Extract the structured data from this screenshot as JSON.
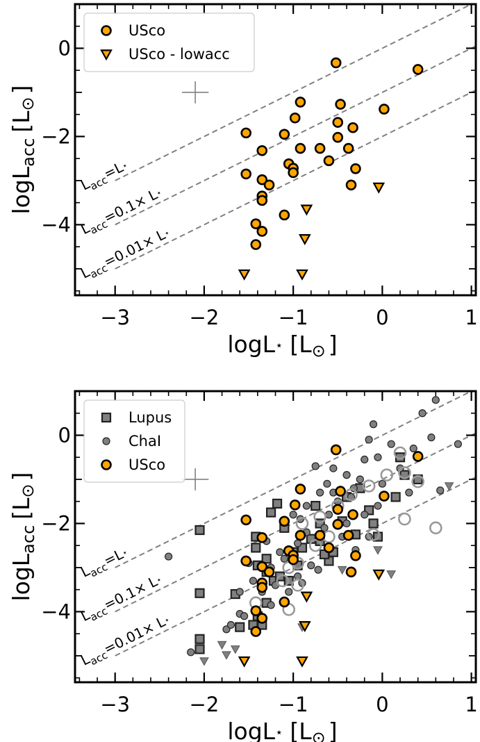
{
  "chart_data": [
    {
      "type": "scatter",
      "panel": "top",
      "xlabel_main": "logL",
      "xlabel_sub": "⋆",
      "xlabel_unit": "[L",
      "xlabel_sun": "⊙",
      "xlabel_close": "]",
      "ylabel_main": "logL",
      "ylabel_sub": "acc",
      "ylabel_unit": "[L",
      "ylabel_sun": "⊙",
      "ylabel_close": "]",
      "xlim": [
        -3.45,
        1.05
      ],
      "ylim": [
        -5.6,
        1.0
      ],
      "xticks": [
        -3,
        -2,
        -1,
        0,
        1
      ],
      "xtick_labels": [
        "−3",
        "−2",
        "−1",
        "0",
        "1"
      ],
      "yticks": [
        -4,
        -2,
        0
      ],
      "ytick_labels": [
        "−4",
        "−2",
        "0"
      ],
      "legend_position": "upper-left",
      "legend": [
        {
          "label": "USco",
          "marker": "circle",
          "color": "#ffa500"
        },
        {
          "label": "USco - lowacc",
          "marker": "triangle-down",
          "color": "#ffa500"
        }
      ],
      "reference_lines": [
        {
          "label": "L_acc=L⋆",
          "label_main": "L",
          "label_sub": "acc",
          "label_rest": "=L",
          "label_star": "⋆",
          "offset": 0
        },
        {
          "label": "L_acc=0.1× L⋆",
          "label_main": "L",
          "label_sub": "acc",
          "label_rest": "=0.1× L",
          "label_star": "⋆",
          "offset": -1
        },
        {
          "label": "L_acc=0.01× L⋆",
          "label_main": "L",
          "label_sub": "acc",
          "label_rest": "=0.01× L",
          "label_star": "⋆",
          "offset": -2
        }
      ],
      "error_cross": {
        "x": -2.1,
        "y": -1.0,
        "dx": 0.15,
        "dy": 0.25
      },
      "series": [
        {
          "name": "USco",
          "marker": "circle",
          "color": "#ffa500",
          "points": [
            [
              -0.52,
              -0.33
            ],
            [
              0.4,
              -0.48
            ],
            [
              -0.92,
              -1.22
            ],
            [
              -0.47,
              -1.27
            ],
            [
              0.02,
              -1.38
            ],
            [
              -0.98,
              -1.58
            ],
            [
              -0.5,
              -1.68
            ],
            [
              -0.33,
              -1.8
            ],
            [
              -1.53,
              -1.92
            ],
            [
              -1.1,
              -1.95
            ],
            [
              -0.5,
              -2.02
            ],
            [
              -0.92,
              -2.27
            ],
            [
              -0.7,
              -2.27
            ],
            [
              -0.38,
              -2.27
            ],
            [
              -1.35,
              -2.32
            ],
            [
              -0.6,
              -2.55
            ],
            [
              -1.05,
              -2.62
            ],
            [
              -1.0,
              -2.72
            ],
            [
              -0.3,
              -2.73
            ],
            [
              -1.0,
              -2.82
            ],
            [
              -1.53,
              -2.85
            ],
            [
              -1.35,
              -2.98
            ],
            [
              -1.27,
              -3.1
            ],
            [
              -0.35,
              -3.1
            ],
            [
              -1.35,
              -3.35
            ],
            [
              -1.35,
              -3.45
            ],
            [
              -1.1,
              -3.78
            ],
            [
              -1.42,
              -3.98
            ],
            [
              -1.35,
              -4.15
            ],
            [
              -1.42,
              -4.45
            ]
          ]
        },
        {
          "name": "USco - lowacc",
          "marker": "triangle-down",
          "color": "#ffa500",
          "points": [
            [
              -0.04,
              -3.15
            ],
            [
              -0.85,
              -3.65
            ],
            [
              -0.87,
              -4.32
            ],
            [
              -1.55,
              -5.12
            ],
            [
              -0.9,
              -5.12
            ]
          ]
        }
      ]
    },
    {
      "type": "scatter",
      "panel": "bottom",
      "xlabel_main": "logL",
      "xlabel_sub": "⋆",
      "xlabel_unit": "[L",
      "xlabel_sun": "⊙",
      "xlabel_close": "]",
      "ylabel_main": "logL",
      "ylabel_sub": "acc",
      "ylabel_unit": "[L",
      "ylabel_sun": "⊙",
      "ylabel_close": "]",
      "xlim": [
        -3.45,
        1.05
      ],
      "ylim": [
        -5.6,
        1.0
      ],
      "xticks": [
        -3,
        -2,
        -1,
        0,
        1
      ],
      "xtick_labels": [
        "−3",
        "−2",
        "−1",
        "0",
        "1"
      ],
      "yticks": [
        -4,
        -2,
        0
      ],
      "ytick_labels": [
        "−4",
        "−2",
        "0"
      ],
      "legend_position": "upper-left",
      "legend": [
        {
          "label": "Lupus",
          "marker": "square",
          "color": "#808080"
        },
        {
          "label": "ChaI",
          "marker": "circle",
          "color": "#808080"
        },
        {
          "label": "USco",
          "marker": "circle",
          "color": "#ffa500"
        }
      ],
      "reference_lines": [
        {
          "label": "L_acc=L⋆",
          "label_main": "L",
          "label_sub": "acc",
          "label_rest": "=L",
          "label_star": "⋆",
          "offset": 0
        },
        {
          "label": "L_acc=0.1× L⋆",
          "label_main": "L",
          "label_sub": "acc",
          "label_rest": "=0.1× L",
          "label_star": "⋆",
          "offset": -1
        },
        {
          "label": "L_acc=0.01× L⋆",
          "label_main": "L",
          "label_sub": "acc",
          "label_rest": "=0.01× L",
          "label_star": "⋆",
          "offset": -2
        }
      ],
      "error_cross": {
        "x": -2.1,
        "y": -1.0,
        "dx": 0.15,
        "dy": 0.25
      },
      "series": [
        {
          "name": "Lupus",
          "marker": "square",
          "color": "#808080",
          "points": [
            [
              -2.05,
              -2.15
            ],
            [
              -2.05,
              -3.58
            ],
            [
              -2.05,
              -4.62
            ],
            [
              -2.05,
              -4.85
            ],
            [
              -1.42,
              -2.3
            ],
            [
              -1.42,
              -2.55
            ],
            [
              -1.4,
              -2.95
            ],
            [
              -1.3,
              -2.8
            ],
            [
              -1.3,
              -3.1
            ],
            [
              -1.25,
              -1.75
            ],
            [
              -1.18,
              -1.55
            ],
            [
              -1.22,
              -3.3
            ],
            [
              -1.1,
              -2.1
            ],
            [
              -1.05,
              -3.3
            ],
            [
              -1.0,
              -2.65
            ],
            [
              -0.95,
              -2.95
            ],
            [
              -0.9,
              -2.55
            ],
            [
              -0.8,
              -2.35
            ],
            [
              -0.75,
              -1.6
            ],
            [
              -0.7,
              -2.0
            ],
            [
              -0.6,
              -2.85
            ],
            [
              -0.55,
              -2.65
            ],
            [
              -0.45,
              -1.95
            ],
            [
              -0.4,
              -1.4
            ],
            [
              -0.3,
              -2.25
            ],
            [
              -0.25,
              -1.2
            ],
            [
              -0.15,
              -1.7
            ],
            [
              -0.1,
              -2.0
            ],
            [
              -0.05,
              -2.3
            ],
            [
              0.15,
              -1.4
            ],
            [
              0.2,
              -0.5
            ],
            [
              0.25,
              -0.9
            ],
            [
              0.4,
              -1.0
            ],
            [
              -1.6,
              -4.35
            ],
            [
              -1.45,
              -4.3
            ],
            [
              -1.35,
              -4.3
            ],
            [
              -1.3,
              -3.8
            ],
            [
              -1.15,
              -3.2
            ],
            [
              -0.7,
              -2.4
            ],
            [
              -0.65,
              -2.7
            ],
            [
              -1.65,
              -3.6
            ],
            [
              -1.4,
              -4.1
            ]
          ]
        },
        {
          "name": "ChaI",
          "marker": "circle",
          "color": "#808080",
          "points": [
            [
              -2.4,
              -2.75
            ],
            [
              -2.15,
              -4.92
            ],
            [
              -1.75,
              -4.4
            ],
            [
              -1.6,
              -3.55
            ],
            [
              -1.6,
              -4.05
            ],
            [
              -1.5,
              -2.9
            ],
            [
              -1.45,
              -3.3
            ],
            [
              -1.35,
              -3.55
            ],
            [
              -1.25,
              -3.0
            ],
            [
              -1.2,
              -3.4
            ],
            [
              -1.1,
              -2.8
            ],
            [
              -1.05,
              -3.55
            ],
            [
              -0.95,
              -3.2
            ],
            [
              -0.92,
              -1.9
            ],
            [
              -0.85,
              -2.2
            ],
            [
              -0.8,
              -2.95
            ],
            [
              -0.75,
              -0.7
            ],
            [
              -0.7,
              -1.3
            ],
            [
              -0.62,
              -1.1
            ],
            [
              -0.55,
              -0.75
            ],
            [
              -0.5,
              -1.5
            ],
            [
              -0.45,
              -2.3
            ],
            [
              -0.4,
              -0.9
            ],
            [
              -0.32,
              -1.2
            ],
            [
              -0.3,
              -2.6
            ],
            [
              -0.25,
              -1.0
            ],
            [
              -0.2,
              -0.55
            ],
            [
              -0.15,
              -0.1
            ],
            [
              -0.1,
              0.25
            ],
            [
              -0.05,
              -0.5
            ],
            [
              0.0,
              -1.1
            ],
            [
              0.1,
              -0.2
            ],
            [
              0.2,
              -0.75
            ],
            [
              0.35,
              -0.3
            ],
            [
              0.45,
              0.5
            ],
            [
              0.55,
              -0.05
            ],
            [
              0.6,
              0.8
            ],
            [
              0.65,
              -1.25
            ],
            [
              0.85,
              -0.2
            ],
            [
              -1.0,
              -1.8
            ],
            [
              -0.85,
              -1.6
            ],
            [
              -0.6,
              -1.8
            ],
            [
              -0.35,
              -1.4
            ],
            [
              -0.2,
              -1.8
            ],
            [
              -0.65,
              -2.1
            ],
            [
              -1.3,
              -2.4
            ],
            [
              -1.15,
              -2.65
            ],
            [
              -0.95,
              -2.45
            ],
            [
              -0.55,
              -1.3
            ],
            [
              -0.05,
              -1.6
            ],
            [
              -1.7,
              -4.3
            ],
            [
              -1.55,
              -4.1
            ],
            [
              -1.25,
              -3.85
            ],
            [
              -0.9,
              -3.35
            ],
            [
              -0.72,
              -3.05
            ],
            [
              -0.4,
              -2.0
            ],
            [
              -0.15,
              -2.3
            ],
            [
              0.3,
              -1.3
            ]
          ]
        },
        {
          "name": "ChaI - lowacc",
          "marker": "triangle-down",
          "color": "#808080",
          "points": [
            [
              -2.0,
              -5.12
            ],
            [
              -1.8,
              -4.75
            ],
            [
              -1.75,
              -4.98
            ],
            [
              -1.65,
              -4.85
            ],
            [
              -0.9,
              -4.35
            ],
            [
              -0.45,
              -3.05
            ],
            [
              -0.05,
              -2.6
            ],
            [
              0.1,
              -3.15
            ],
            [
              0.75,
              -1.15
            ]
          ]
        },
        {
          "name": "open",
          "marker": "open-circle",
          "color": "#999999",
          "points": [
            [
              -1.42,
              -3.8
            ],
            [
              -1.12,
              -3.3
            ],
            [
              -1.05,
              -3.0
            ],
            [
              -0.95,
              -3.4
            ],
            [
              -0.95,
              -2.9
            ],
            [
              -0.9,
              -2.0
            ],
            [
              -0.75,
              -2.5
            ],
            [
              -0.7,
              -1.85
            ],
            [
              -0.6,
              -2.3
            ],
            [
              -0.5,
              -1.6
            ],
            [
              -0.35,
              -1.35
            ],
            [
              -0.15,
              -1.15
            ],
            [
              0.05,
              -0.9
            ],
            [
              0.2,
              -0.4
            ],
            [
              0.25,
              -0.85
            ],
            [
              0.4,
              -1.05
            ],
            [
              -0.1,
              -2.25
            ],
            [
              0.25,
              -1.9
            ],
            [
              0.6,
              -2.1
            ],
            [
              -1.05,
              -3.95
            ]
          ]
        },
        {
          "name": "USco",
          "marker": "circle",
          "color": "#ffa500",
          "points": [
            [
              -0.52,
              -0.33
            ],
            [
              0.4,
              -0.48
            ],
            [
              -0.92,
              -1.22
            ],
            [
              -0.47,
              -1.27
            ],
            [
              0.02,
              -1.38
            ],
            [
              -0.98,
              -1.58
            ],
            [
              -0.5,
              -1.68
            ],
            [
              -0.33,
              -1.8
            ],
            [
              -1.53,
              -1.92
            ],
            [
              -1.1,
              -1.95
            ],
            [
              -0.5,
              -2.02
            ],
            [
              -0.92,
              -2.27
            ],
            [
              -0.7,
              -2.27
            ],
            [
              -0.38,
              -2.27
            ],
            [
              -1.35,
              -2.32
            ],
            [
              -0.6,
              -2.55
            ],
            [
              -1.05,
              -2.62
            ],
            [
              -1.0,
              -2.72
            ],
            [
              -0.3,
              -2.73
            ],
            [
              -1.0,
              -2.82
            ],
            [
              -1.53,
              -2.85
            ],
            [
              -1.35,
              -2.98
            ],
            [
              -1.27,
              -3.1
            ],
            [
              -0.35,
              -3.1
            ],
            [
              -1.35,
              -3.35
            ],
            [
              -1.35,
              -3.45
            ],
            [
              -1.1,
              -3.78
            ],
            [
              -1.42,
              -3.98
            ],
            [
              -1.35,
              -4.15
            ],
            [
              -1.42,
              -4.45
            ]
          ]
        },
        {
          "name": "USco - lowacc",
          "marker": "triangle-down",
          "color": "#ffa500",
          "points": [
            [
              -0.04,
              -3.15
            ],
            [
              -0.85,
              -3.65
            ],
            [
              -0.87,
              -4.32
            ],
            [
              -1.55,
              -5.12
            ],
            [
              -0.9,
              -5.12
            ]
          ]
        }
      ]
    }
  ]
}
